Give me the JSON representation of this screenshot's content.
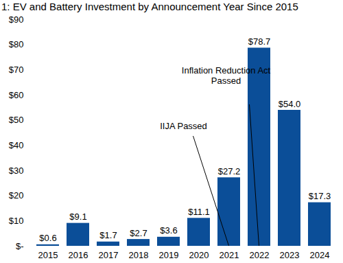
{
  "chart_data": {
    "type": "bar",
    "title": "1: EV and Battery Investment by Announcement Year Since 2015",
    "categories": [
      "2015",
      "2016",
      "2017",
      "2018",
      "2019",
      "2020",
      "2021",
      "2022",
      "2023",
      "2024"
    ],
    "values": [
      0.6,
      9.1,
      1.7,
      2.7,
      3.6,
      11.1,
      27.2,
      78.7,
      54.0,
      17.3
    ],
    "value_labels": [
      "$0.6",
      "$9.1",
      "$1.7",
      "$2.7",
      "$3.6",
      "$11.1",
      "$27.2",
      "$78.7",
      "$54.0",
      "$17.3"
    ],
    "color": "#0b4e98",
    "ylim": [
      0,
      90
    ],
    "yticks": [
      {
        "value": 0,
        "label": "$-"
      },
      {
        "value": 10,
        "label": "$10"
      },
      {
        "value": 20,
        "label": "$20"
      },
      {
        "value": 30,
        "label": "$30"
      },
      {
        "value": 40,
        "label": "$40"
      },
      {
        "value": 50,
        "label": "$50"
      },
      {
        "value": 60,
        "label": "$60"
      },
      {
        "value": 70,
        "label": "$70"
      },
      {
        "value": 80,
        "label": "$80"
      },
      {
        "value": 90,
        "label": "$90"
      }
    ],
    "grid": false,
    "data_labels": true,
    "annotations": [
      {
        "text": "IIJA Passed",
        "category": "2021"
      },
      {
        "text": "Inflation Reduction Act\nPassed",
        "category": "2022"
      }
    ]
  }
}
